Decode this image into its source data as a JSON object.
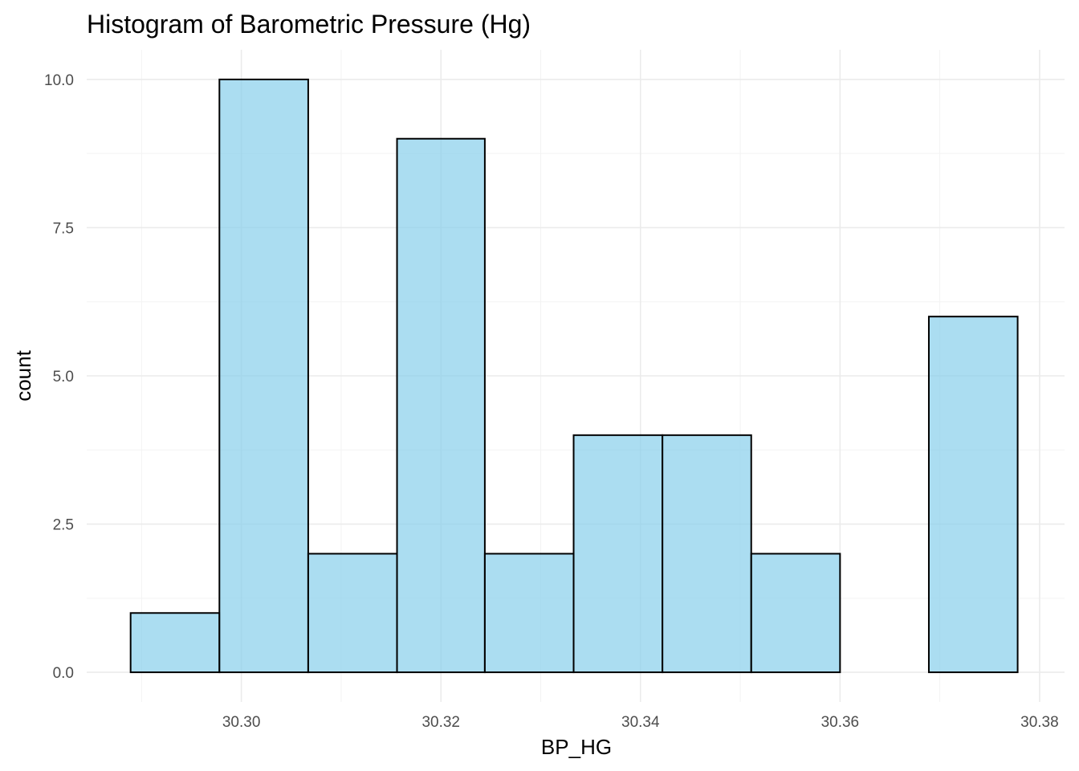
{
  "chart_data": {
    "type": "bar",
    "title": "Histogram of Barometric Pressure (Hg)",
    "xlabel": "BP_HG",
    "ylabel": "count",
    "xlim": [
      30.2845,
      30.3825
    ],
    "ylim": [
      -0.5,
      10.5
    ],
    "x_ticks": [
      30.3,
      30.32,
      30.34,
      30.36,
      30.38
    ],
    "x_tick_labels": [
      "30.30",
      "30.32",
      "30.34",
      "30.36",
      "30.38"
    ],
    "y_ticks": [
      0,
      2.5,
      5,
      7.5,
      10
    ],
    "y_tick_labels": [
      "0.0",
      "2.5",
      "5.0",
      "7.5",
      "10.0"
    ],
    "bins": [
      {
        "x0": 30.2889,
        "x1": 30.2978,
        "count": 1
      },
      {
        "x0": 30.2978,
        "x1": 30.3067,
        "count": 10
      },
      {
        "x0": 30.3067,
        "x1": 30.3156,
        "count": 2
      },
      {
        "x0": 30.3156,
        "x1": 30.3244,
        "count": 9
      },
      {
        "x0": 30.3244,
        "x1": 30.3333,
        "count": 2
      },
      {
        "x0": 30.3333,
        "x1": 30.3422,
        "count": 4
      },
      {
        "x0": 30.3422,
        "x1": 30.3511,
        "count": 4
      },
      {
        "x0": 30.3511,
        "x1": 30.36,
        "count": 2
      },
      {
        "x0": 30.36,
        "x1": 30.3689,
        "count": 0
      },
      {
        "x0": 30.3689,
        "x1": 30.3778,
        "count": 6
      }
    ],
    "fill_color": "#87ceeb",
    "fill_opacity": 0.7,
    "edge_color": "#000000",
    "grid": true,
    "legend": "none"
  }
}
